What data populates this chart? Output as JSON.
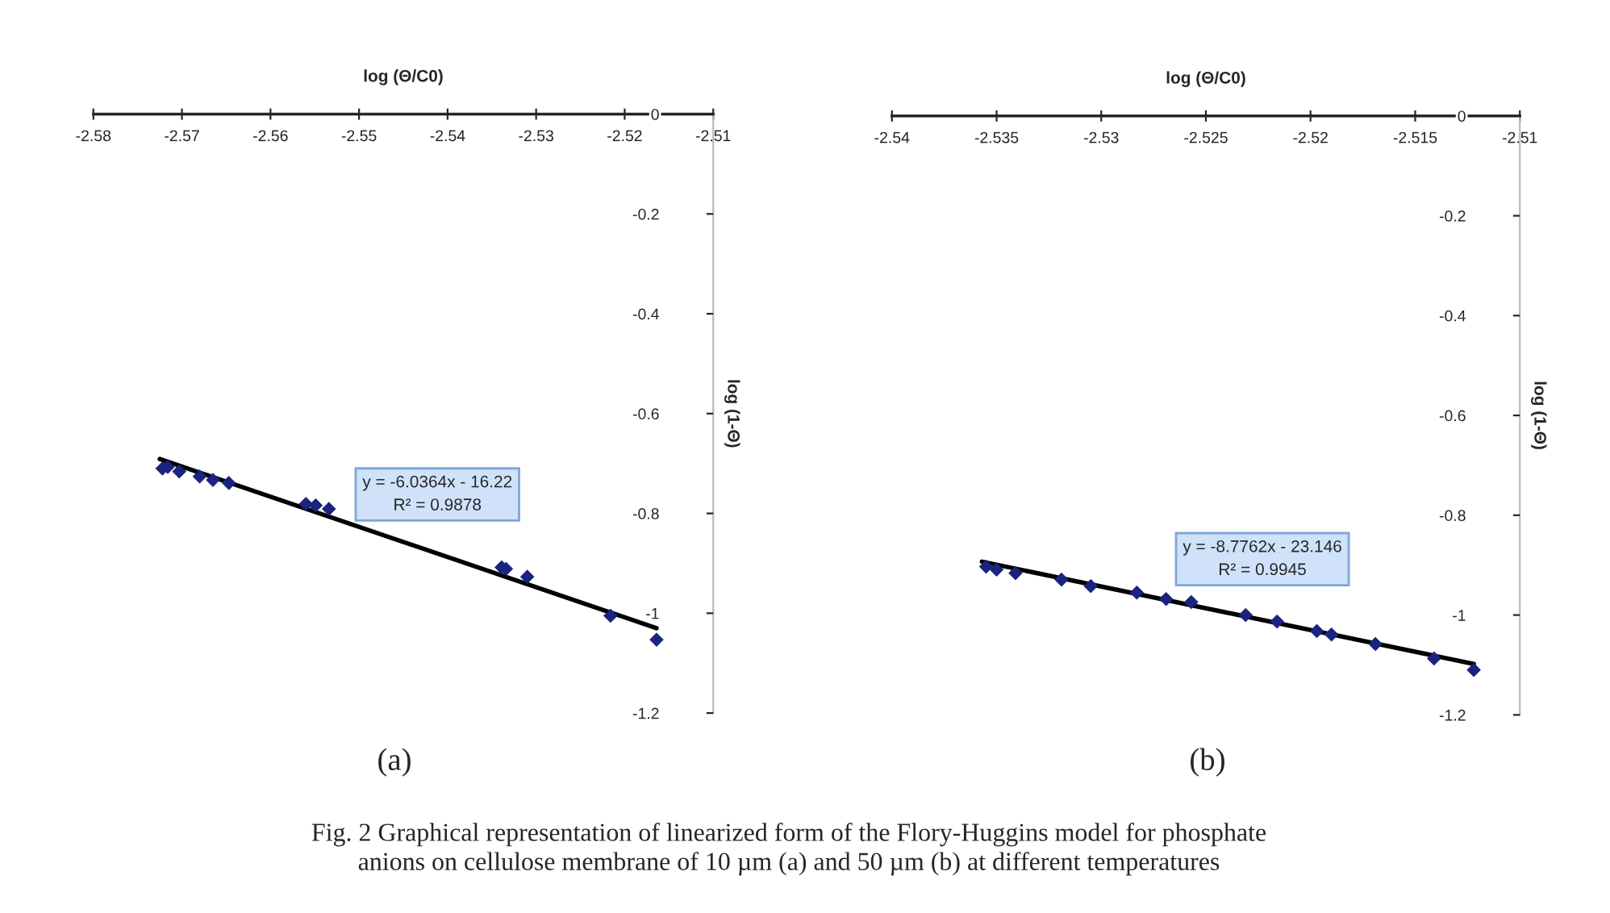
{
  "chart_data": [
    {
      "type": "scatter",
      "xlabel": "log (Θ/C0)",
      "ylabel": "log (1-Θ)",
      "series": [
        {
          "marker": "diamond",
          "color": "#1a237e",
          "x": [
            -2.5722,
            -2.5716,
            -2.5703,
            -2.568,
            -2.5665,
            -2.5647,
            -2.556,
            -2.5549,
            -2.5534,
            -2.5339,
            -2.5334,
            -2.531,
            -2.5216,
            -2.5164
          ],
          "values": [
            -0.71,
            -0.707,
            -0.716,
            -0.726,
            -0.733,
            -0.739,
            -0.781,
            -0.784,
            -0.791,
            -0.908,
            -0.911,
            -0.927,
            -1.005,
            -1.053
          ]
        },
        {
          "type": "line",
          "color": "#000000",
          "x": [
            -2.5725,
            -2.5164
          ],
          "values": [
            -0.691,
            -1.03
          ]
        }
      ],
      "xlim": [
        -2.58,
        -2.51
      ],
      "xticks": [
        -2.58,
        -2.57,
        -2.56,
        -2.55,
        -2.54,
        -2.53,
        -2.52,
        -2.51
      ],
      "ylim": [
        -1.2,
        0
      ],
      "yticks": [
        0,
        -0.2,
        -0.4,
        -0.6,
        -0.8,
        -1,
        -1.2
      ],
      "annotations": [
        "y = -6.0364x - 16.22\nR² = 0.9878",
        "(a)",
        "Fig. 2 Graphical representation of linearized form of the Flory-Huggins model for phosphate\nanions on cellulose membrane of 10 µm (a) and 50 µm (b) at different temperatures"
      ]
    },
    {
      "type": "scatter",
      "xlabel": "log (Θ/C0)",
      "ylabel": "log (1-Θ)",
      "series": [
        {
          "marker": "diamond",
          "color": "#1a237e",
          "x": [
            -2.5355,
            -2.535,
            -2.5341,
            -2.5319,
            -2.5305,
            -2.5283,
            -2.5269,
            -2.5257,
            -2.5231,
            -2.5216,
            -2.5197,
            -2.519,
            -2.5169,
            -2.5141,
            -2.5122
          ],
          "values": [
            -0.903,
            -0.909,
            -0.916,
            -0.929,
            -0.942,
            -0.955,
            -0.968,
            -0.974,
            -1.0,
            -1.013,
            -1.032,
            -1.039,
            -1.058,
            -1.087,
            -1.11
          ]
        },
        {
          "type": "line",
          "color": "#000000",
          "x": [
            -2.5357,
            -2.5122
          ],
          "values": [
            -0.893,
            -1.098
          ]
        }
      ],
      "xlim": [
        -2.54,
        -2.51
      ],
      "xticks": [
        -2.54,
        -2.535,
        -2.53,
        -2.525,
        -2.52,
        -2.515,
        -2.51
      ],
      "ylim": [
        -1.2,
        0
      ],
      "yticks": [
        0,
        -0.2,
        -0.4,
        -0.6,
        -0.8,
        -1,
        -1.2
      ],
      "annotations": [
        "y = -8.7762x - 23.146\nR² = 0.9945",
        "(b)"
      ]
    }
  ]
}
